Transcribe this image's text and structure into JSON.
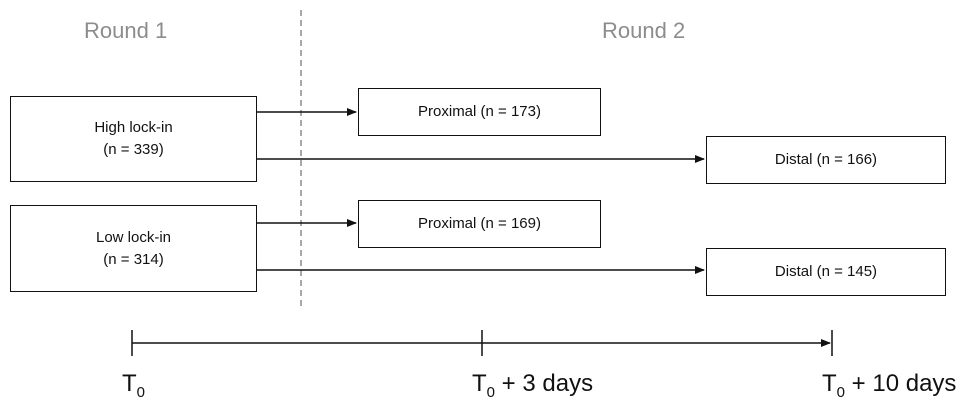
{
  "rounds": {
    "round1": "Round 1",
    "round2": "Round 2"
  },
  "groups": {
    "high": {
      "name": "High lock-in",
      "n": "(n = 339)"
    },
    "low": {
      "name": "Low lock-in",
      "n": "(n = 314)"
    }
  },
  "outcomes": {
    "high_proximal": "Proximal (n = 173)",
    "high_distal": "Distal (n = 166)",
    "low_proximal": "Proximal (n = 169)",
    "low_distal": "Distal (n = 145)"
  },
  "timeline": {
    "t0": {
      "main": "T",
      "sub": "0",
      "suffix": ""
    },
    "t3": {
      "main": "T",
      "sub": "0",
      "suffix": " + 3 days"
    },
    "t10": {
      "main": "T",
      "sub": "0",
      "suffix": " + 10 days"
    }
  }
}
